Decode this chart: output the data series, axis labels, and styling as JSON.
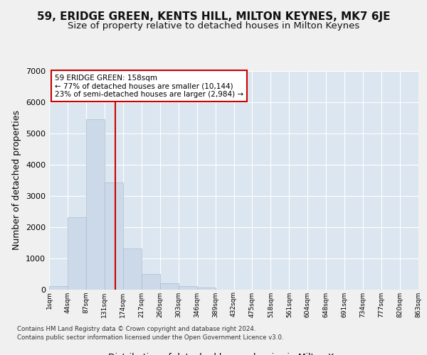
{
  "title": "59, ERIDGE GREEN, KENTS HILL, MILTON KEYNES, MK7 6JE",
  "subtitle": "Size of property relative to detached houses in Milton Keynes",
  "xlabel": "Distribution of detached houses by size in Milton Keynes",
  "ylabel": "Number of detached properties",
  "bin_labels": [
    "1sqm",
    "44sqm",
    "87sqm",
    "131sqm",
    "174sqm",
    "217sqm",
    "260sqm",
    "303sqm",
    "346sqm",
    "389sqm",
    "432sqm",
    "475sqm",
    "518sqm",
    "561sqm",
    "604sqm",
    "648sqm",
    "691sqm",
    "734sqm",
    "777sqm",
    "820sqm",
    "863sqm"
  ],
  "bar_heights": [
    100,
    2300,
    5450,
    3420,
    1310,
    480,
    190,
    95,
    55,
    0,
    0,
    0,
    0,
    0,
    0,
    0,
    0,
    0,
    0,
    0
  ],
  "bar_color": "#ccd9e8",
  "bar_edge_color": "#a8bdd0",
  "vline_x": 3.58,
  "vline_color": "#cc0000",
  "annotation_text": "59 ERIDGE GREEN: 158sqm\n← 77% of detached houses are smaller (10,144)\n23% of semi-detached houses are larger (2,984) →",
  "annotation_box_facecolor": "#ffffff",
  "annotation_box_edgecolor": "#cc0000",
  "ylim_max": 7000,
  "ytick_step": 1000,
  "background_color": "#dce6f0",
  "grid_color": "#ffffff",
  "footer_line1": "Contains HM Land Registry data © Crown copyright and database right 2024.",
  "footer_line2": "Contains public sector information licensed under the Open Government Licence v3.0.",
  "fig_facecolor": "#f0f0f0"
}
